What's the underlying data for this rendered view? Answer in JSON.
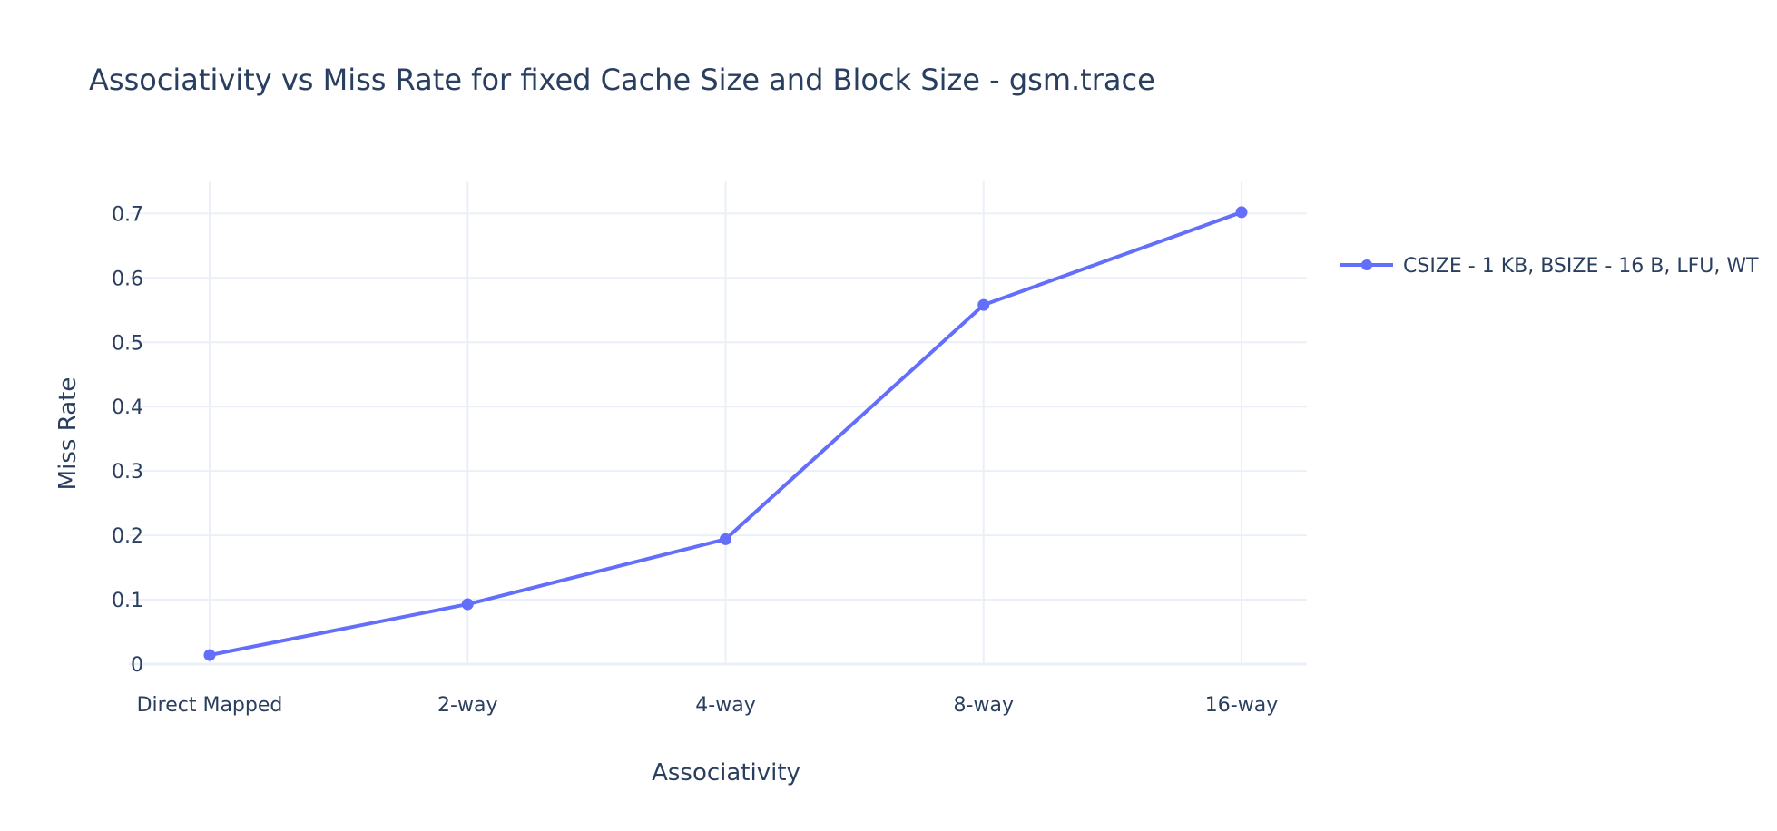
{
  "chart_data": {
    "type": "line",
    "title": "Associativity vs Miss Rate for fixed Cache Size and Block Size - gsm.trace",
    "xlabel": "Associativity",
    "ylabel": "Miss Rate",
    "categories": [
      "Direct Mapped",
      "2-way",
      "4-way",
      "8-way",
      "16-way"
    ],
    "series": [
      {
        "name": "CSIZE - 1 KB, BSIZE - 16 B, LFU, WT",
        "values": [
          0.014,
          0.093,
          0.194,
          0.558,
          0.702
        ],
        "color": "#636efa",
        "mode": "lines+markers"
      }
    ],
    "ylim": [
      0,
      0.75
    ],
    "yticks": [
      0,
      0.1,
      0.2,
      0.3,
      0.4,
      0.5,
      0.6,
      0.7
    ],
    "ytick_labels": [
      "0",
      "0.1",
      "0.2",
      "0.3",
      "0.4",
      "0.5",
      "0.6",
      "0.7"
    ],
    "grid": true,
    "legend": "right",
    "colors": {
      "text": "#2a3f5f",
      "grid": "#ebf0f8",
      "zeroline": "#ebf0f8",
      "background": "#ffffff"
    }
  }
}
